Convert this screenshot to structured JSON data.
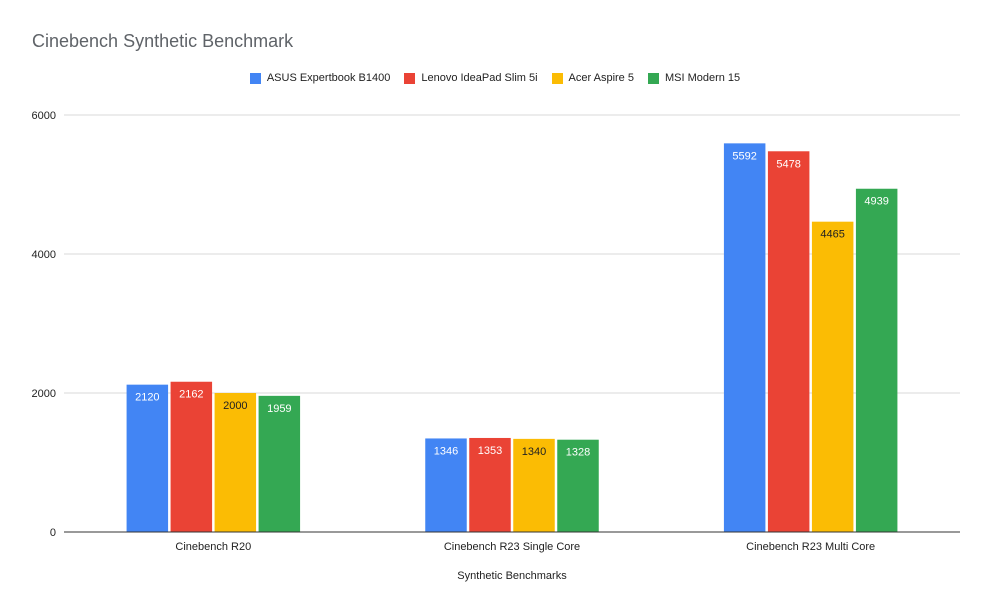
{
  "chart_data": {
    "type": "bar",
    "title": "Cinebench Synthetic Benchmark",
    "xlabel": "Synthetic Benchmarks",
    "ylabel": "",
    "ylim": [
      0,
      6000
    ],
    "yticks": [
      0,
      2000,
      4000,
      6000
    ],
    "categories": [
      "Cinebench R20",
      "Cinebench R23 Single Core",
      "Cinebench R23 Multi Core"
    ],
    "series": [
      {
        "name": "ASUS Expertbook B1400",
        "color": "#4285f4",
        "label_color": "#ffffff",
        "values": [
          2120,
          1346,
          5592
        ]
      },
      {
        "name": "Lenovo IdeaPad Slim 5i",
        "color": "#ea4335",
        "label_color": "#ffffff",
        "values": [
          2162,
          1353,
          5478
        ]
      },
      {
        "name": "Acer Aspire 5",
        "color": "#fbbc04",
        "label_color": "#222222",
        "values": [
          2000,
          1340,
          4465
        ]
      },
      {
        "name": "MSI Modern 15",
        "color": "#34a853",
        "label_color": "#ffffff",
        "values": [
          1959,
          1328,
          4939
        ]
      }
    ],
    "legend_position": "top",
    "grid": true
  }
}
